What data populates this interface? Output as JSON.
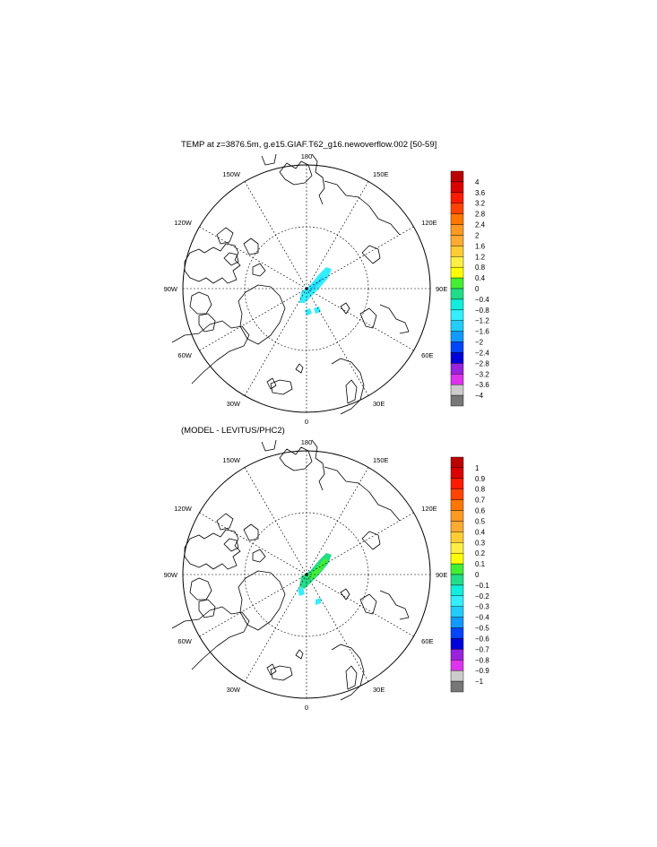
{
  "chart_data": [
    {
      "type": "heatmap",
      "projection": "north-polar-stereographic",
      "title": "TEMP at z=3876.5m, g.e15.GIAF.T62_g16.newoverflow.002 [50-59]",
      "longitude_labels": [
        "180",
        "150E",
        "120E",
        "90E",
        "60E",
        "30E",
        "0",
        "30W",
        "60W",
        "90W",
        "120W",
        "150W"
      ],
      "colorbar": {
        "labels": [
          "4",
          "3.6",
          "3.2",
          "2.8",
          "2.4",
          "2",
          "1.6",
          "1.2",
          "0.8",
          "0.4",
          "0",
          "−0.4",
          "−0.8",
          "−1.2",
          "−1.6",
          "−2",
          "−2.4",
          "−2.8",
          "−3.2",
          "−3.6",
          "−4"
        ],
        "colors": [
          "#bb0000",
          "#dd0000",
          "#ff1a00",
          "#ff4400",
          "#ff7700",
          "#ff9922",
          "#ffaa33",
          "#ffcc33",
          "#ffee44",
          "#ffff00",
          "#44ee33",
          "#22dd88",
          "#11eedd",
          "#33eeff",
          "#22ccff",
          "#1199ff",
          "#0044ff",
          "#0000dd",
          "#9922dd",
          "#dd33ee",
          "#cccccc",
          "#777777"
        ]
      },
      "field": {
        "description_value_range": [
          -1.6,
          -0.4
        ],
        "shading_colors": [
          "#22ccff",
          "#33eeff"
        ]
      }
    },
    {
      "type": "heatmap",
      "projection": "north-polar-stereographic",
      "title": "(MODEL - LEVITUS/PHC2)",
      "longitude_labels": [
        "180",
        "150E",
        "120E",
        "90E",
        "60E",
        "30E",
        "0",
        "30W",
        "60W",
        "90W",
        "120W",
        "150W"
      ],
      "colorbar": {
        "labels": [
          "1",
          "0.9",
          "0.8",
          "0.7",
          "0.6",
          "0.5",
          "0.4",
          "0.3",
          "0.2",
          "0.1",
          "0",
          "−0.1",
          "−0.2",
          "−0.3",
          "−0.4",
          "−0.5",
          "−0.6",
          "−0.7",
          "−0.8",
          "−0.9",
          "−1"
        ],
        "colors": [
          "#bb0000",
          "#dd0000",
          "#ff1a00",
          "#ff4400",
          "#ff7700",
          "#ff9922",
          "#ffaa33",
          "#ffcc33",
          "#ffee44",
          "#ffff00",
          "#44ee33",
          "#22dd88",
          "#11eedd",
          "#33eeff",
          "#22ccff",
          "#1199ff",
          "#0044ff",
          "#0000dd",
          "#9922dd",
          "#dd33ee",
          "#cccccc",
          "#777777"
        ]
      },
      "field": {
        "description_value_range": [
          -0.3,
          0.1
        ],
        "shading_colors": [
          "#22dd88",
          "#44ee33",
          "#33eeff"
        ]
      }
    }
  ]
}
